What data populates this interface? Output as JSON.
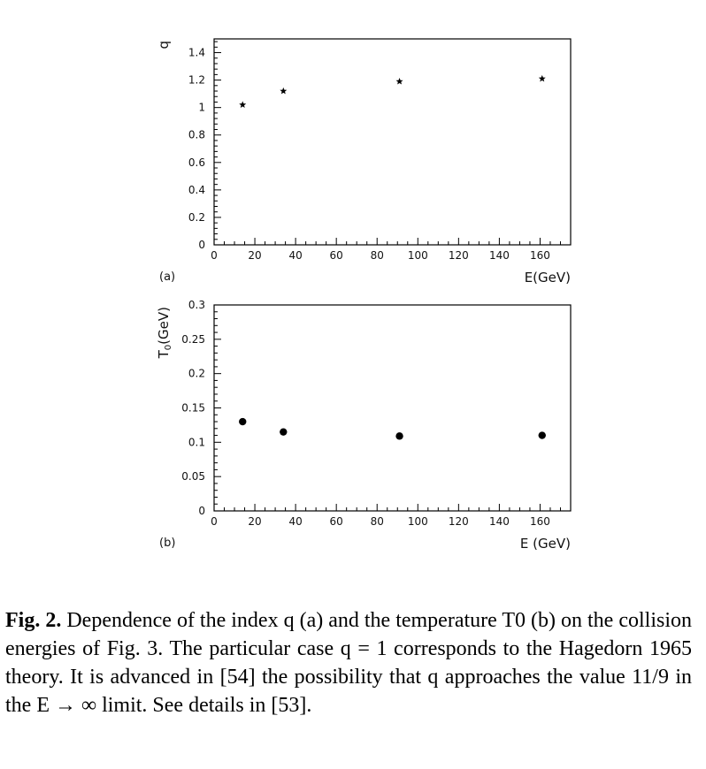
{
  "chart_data": [
    {
      "type": "scatter",
      "panel_label": "(a)",
      "xlabel": "E(GeV)",
      "ylabel": "q",
      "xlim": [
        0,
        175
      ],
      "ylim": [
        0,
        1.5
      ],
      "x_ticks": [
        0,
        20,
        40,
        60,
        80,
        100,
        120,
        140,
        160
      ],
      "y_ticks": [
        0,
        0.2,
        0.4,
        0.6,
        0.8,
        1,
        1.2,
        1.4
      ],
      "marker": "star",
      "x": [
        14,
        34,
        91,
        161
      ],
      "y": [
        1.02,
        1.12,
        1.19,
        1.21
      ]
    },
    {
      "type": "scatter",
      "panel_label": "(b)",
      "xlabel": "E (GeV)",
      "ylabel": "T0(GeV)",
      "xlim": [
        0,
        175
      ],
      "ylim": [
        0,
        0.3
      ],
      "x_ticks": [
        0,
        20,
        40,
        60,
        80,
        100,
        120,
        140,
        160
      ],
      "y_ticks": [
        0,
        0.05,
        0.1,
        0.15,
        0.2,
        0.25,
        0.3
      ],
      "marker": "circle",
      "x": [
        14,
        34,
        91,
        161
      ],
      "y": [
        0.13,
        0.115,
        0.109,
        0.11
      ]
    }
  ],
  "caption": {
    "label": "Fig. 2.",
    "text": " Dependence of the index q (a) and the temperature T0 (b) on the collision energies of Fig. 3. The particular case q = 1 corresponds to the Hagedorn 1965 theory. It is advanced in [54] the possibility that q approaches the value 11/9 in the E → ∞ limit. See details in [53]."
  }
}
